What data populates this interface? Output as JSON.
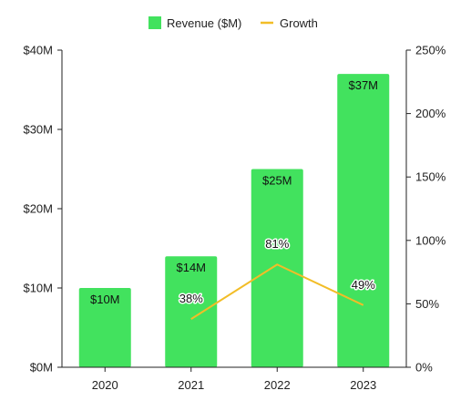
{
  "chart_data": {
    "type": "bar",
    "categories": [
      "2020",
      "2021",
      "2022",
      "2023"
    ],
    "series": [
      {
        "name": "Revenue ($M)",
        "type": "bar",
        "axis": "left",
        "color": "#42e25e",
        "values": [
          10,
          14,
          25,
          37
        ],
        "data_labels": [
          "$10M",
          "$14M",
          "$25M",
          "$37M"
        ]
      },
      {
        "name": "Growth",
        "type": "line",
        "axis": "right",
        "color": "#f2bd27",
        "values": [
          null,
          38,
          81,
          49
        ],
        "data_labels": [
          "",
          "38%",
          "81%",
          "49%"
        ]
      }
    ],
    "y_left": {
      "range": [
        0,
        40
      ],
      "ticks": [
        0,
        10,
        20,
        30,
        40
      ],
      "tick_labels": [
        "$0M",
        "$10M",
        "$20M",
        "$30M",
        "$40M"
      ]
    },
    "y_right": {
      "range": [
        0,
        250
      ],
      "ticks": [
        0,
        50,
        100,
        150,
        200,
        250
      ],
      "tick_labels": [
        "0%",
        "50%",
        "100%",
        "150%",
        "200%",
        "250%"
      ]
    },
    "grid": false,
    "legend_position": "top-center"
  }
}
